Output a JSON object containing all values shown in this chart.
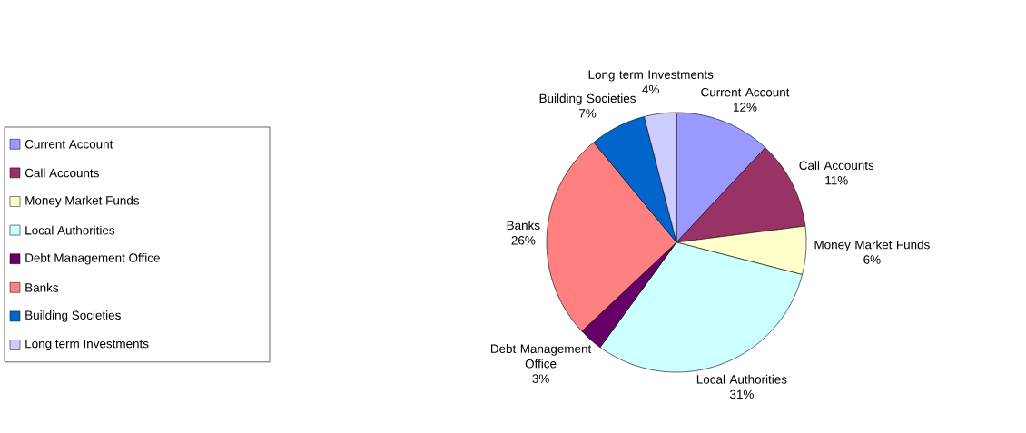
{
  "chart_data": {
    "type": "pie",
    "categories": [
      "Current Account",
      "Call Accounts",
      "Money Market Funds",
      "Local Authorities",
      "Debt Management Office",
      "Banks",
      "Building Societies",
      "Long term Investments"
    ],
    "values": [
      12,
      11,
      6,
      31,
      3,
      26,
      7,
      4
    ],
    "value_labels": [
      "12%",
      "11%",
      "6%",
      "31%",
      "3%",
      "26%",
      "7%",
      "4%"
    ],
    "colors": [
      "#9999ff",
      "#993366",
      "#ffffcc",
      "#ccffff",
      "#660066",
      "#ff8080",
      "#0066cc",
      "#ccccff"
    ],
    "legend": "left"
  }
}
